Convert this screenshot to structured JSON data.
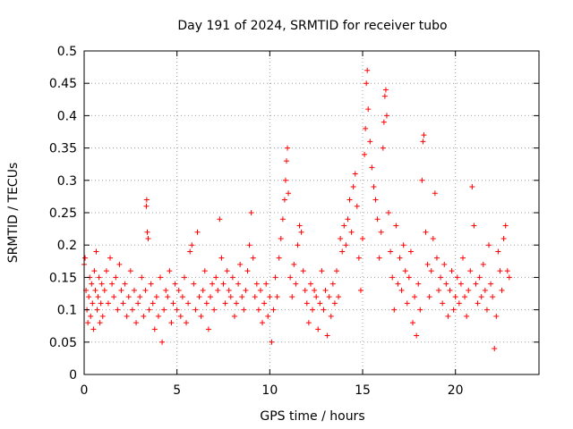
{
  "chart_data": {
    "type": "scatter",
    "title": "Day 191 of 2024, SRMTID for receiver tubo",
    "xlabel": "GPS time / hours",
    "ylabel": "SRMTID / TECUs",
    "xlim": [
      0,
      24.5
    ],
    "ylim": [
      0,
      0.5
    ],
    "xticks": [
      0,
      5,
      10,
      15,
      20
    ],
    "yticks": [
      0,
      0.05,
      0.1,
      0.15,
      0.2,
      0.25,
      0.3,
      0.35,
      0.4,
      0.45,
      0.5
    ],
    "xtick_labels": [
      "0",
      "5",
      "10",
      "15",
      "20"
    ],
    "ytick_labels": [
      "0",
      "0.05",
      "0.1",
      "0.15",
      "0.2",
      "0.25",
      "0.3",
      "0.35",
      "0.4",
      "0.45",
      "0.5"
    ],
    "grid": true,
    "marker": "+",
    "color": "#ff0000",
    "series": [
      {
        "name": "SRMTID",
        "points": [
          [
            0.0,
            0.17
          ],
          [
            0.05,
            0.18
          ],
          [
            0.1,
            0.13
          ],
          [
            0.15,
            0.1
          ],
          [
            0.2,
            0.08
          ],
          [
            0.25,
            0.12
          ],
          [
            0.3,
            0.15
          ],
          [
            0.35,
            0.09
          ],
          [
            0.4,
            0.14
          ],
          [
            0.45,
            0.11
          ],
          [
            0.5,
            0.07
          ],
          [
            0.55,
            0.16
          ],
          [
            0.6,
            0.13
          ],
          [
            0.65,
            0.19
          ],
          [
            0.7,
            0.1
          ],
          [
            0.75,
            0.12
          ],
          [
            0.8,
            0.15
          ],
          [
            0.85,
            0.08
          ],
          [
            0.9,
            0.11
          ],
          [
            0.95,
            0.14
          ],
          [
            1.0,
            0.09
          ],
          [
            1.1,
            0.13
          ],
          [
            1.2,
            0.16
          ],
          [
            1.3,
            0.11
          ],
          [
            1.4,
            0.18
          ],
          [
            1.5,
            0.14
          ],
          [
            1.6,
            0.12
          ],
          [
            1.7,
            0.15
          ],
          [
            1.8,
            0.1
          ],
          [
            1.9,
            0.17
          ],
          [
            2.0,
            0.13
          ],
          [
            2.1,
            0.11
          ],
          [
            2.2,
            0.14
          ],
          [
            2.3,
            0.09
          ],
          [
            2.4,
            0.12
          ],
          [
            2.5,
            0.16
          ],
          [
            2.6,
            0.1
          ],
          [
            2.7,
            0.13
          ],
          [
            2.8,
            0.08
          ],
          [
            2.9,
            0.11
          ],
          [
            3.0,
            0.12
          ],
          [
            3.1,
            0.15
          ],
          [
            3.2,
            0.09
          ],
          [
            3.3,
            0.13
          ],
          [
            3.35,
            0.26
          ],
          [
            3.37,
            0.27
          ],
          [
            3.4,
            0.22
          ],
          [
            3.45,
            0.21
          ],
          [
            3.5,
            0.1
          ],
          [
            3.6,
            0.14
          ],
          [
            3.7,
            0.11
          ],
          [
            3.8,
            0.07
          ],
          [
            3.9,
            0.12
          ],
          [
            4.0,
            0.09
          ],
          [
            4.1,
            0.15
          ],
          [
            4.2,
            0.05
          ],
          [
            4.3,
            0.1
          ],
          [
            4.4,
            0.13
          ],
          [
            4.5,
            0.12
          ],
          [
            4.6,
            0.16
          ],
          [
            4.7,
            0.08
          ],
          [
            4.8,
            0.11
          ],
          [
            4.9,
            0.14
          ],
          [
            5.0,
            0.1
          ],
          [
            5.1,
            0.13
          ],
          [
            5.2,
            0.09
          ],
          [
            5.3,
            0.12
          ],
          [
            5.4,
            0.15
          ],
          [
            5.5,
            0.08
          ],
          [
            5.6,
            0.11
          ],
          [
            5.7,
            0.19
          ],
          [
            5.8,
            0.2
          ],
          [
            5.9,
            0.14
          ],
          [
            6.0,
            0.1
          ],
          [
            6.1,
            0.22
          ],
          [
            6.2,
            0.12
          ],
          [
            6.3,
            0.09
          ],
          [
            6.4,
            0.13
          ],
          [
            6.5,
            0.16
          ],
          [
            6.6,
            0.11
          ],
          [
            6.7,
            0.07
          ],
          [
            6.8,
            0.12
          ],
          [
            6.9,
            0.14
          ],
          [
            7.0,
            0.1
          ],
          [
            7.1,
            0.15
          ],
          [
            7.2,
            0.13
          ],
          [
            7.3,
            0.24
          ],
          [
            7.4,
            0.18
          ],
          [
            7.5,
            0.14
          ],
          [
            7.6,
            0.11
          ],
          [
            7.7,
            0.16
          ],
          [
            7.8,
            0.13
          ],
          [
            7.9,
            0.12
          ],
          [
            8.0,
            0.15
          ],
          [
            8.1,
            0.09
          ],
          [
            8.2,
            0.11
          ],
          [
            8.3,
            0.14
          ],
          [
            8.4,
            0.17
          ],
          [
            8.5,
            0.12
          ],
          [
            8.6,
            0.1
          ],
          [
            8.7,
            0.13
          ],
          [
            8.8,
            0.16
          ],
          [
            8.9,
            0.2
          ],
          [
            9.0,
            0.25
          ],
          [
            9.1,
            0.18
          ],
          [
            9.2,
            0.12
          ],
          [
            9.3,
            0.14
          ],
          [
            9.4,
            0.1
          ],
          [
            9.5,
            0.13
          ],
          [
            9.6,
            0.08
          ],
          [
            9.7,
            0.11
          ],
          [
            9.8,
            0.14
          ],
          [
            9.9,
            0.09
          ],
          [
            10.0,
            0.12
          ],
          [
            10.1,
            0.05
          ],
          [
            10.2,
            0.1
          ],
          [
            10.3,
            0.15
          ],
          [
            10.4,
            0.12
          ],
          [
            10.5,
            0.18
          ],
          [
            10.6,
            0.21
          ],
          [
            10.7,
            0.24
          ],
          [
            10.8,
            0.27
          ],
          [
            10.85,
            0.3
          ],
          [
            10.9,
            0.33
          ],
          [
            10.95,
            0.35
          ],
          [
            11.0,
            0.28
          ],
          [
            11.1,
            0.15
          ],
          [
            11.2,
            0.12
          ],
          [
            11.3,
            0.17
          ],
          [
            11.4,
            0.14
          ],
          [
            11.5,
            0.2
          ],
          [
            11.6,
            0.23
          ],
          [
            11.7,
            0.22
          ],
          [
            11.8,
            0.16
          ],
          [
            11.9,
            0.13
          ],
          [
            12.0,
            0.11
          ],
          [
            12.1,
            0.08
          ],
          [
            12.2,
            0.14
          ],
          [
            12.3,
            0.1
          ],
          [
            12.4,
            0.13
          ],
          [
            12.5,
            0.12
          ],
          [
            12.6,
            0.07
          ],
          [
            12.7,
            0.11
          ],
          [
            12.8,
            0.16
          ],
          [
            12.9,
            0.1
          ],
          [
            13.0,
            0.13
          ],
          [
            13.1,
            0.06
          ],
          [
            13.2,
            0.12
          ],
          [
            13.3,
            0.09
          ],
          [
            13.4,
            0.14
          ],
          [
            13.5,
            0.11
          ],
          [
            13.6,
            0.16
          ],
          [
            13.7,
            0.12
          ],
          [
            13.8,
            0.21
          ],
          [
            13.9,
            0.19
          ],
          [
            14.0,
            0.23
          ],
          [
            14.1,
            0.2
          ],
          [
            14.2,
            0.24
          ],
          [
            14.3,
            0.27
          ],
          [
            14.4,
            0.22
          ],
          [
            14.5,
            0.29
          ],
          [
            14.6,
            0.31
          ],
          [
            14.7,
            0.26
          ],
          [
            14.8,
            0.18
          ],
          [
            14.9,
            0.13
          ],
          [
            15.0,
            0.21
          ],
          [
            15.1,
            0.34
          ],
          [
            15.15,
            0.38
          ],
          [
            15.2,
            0.45
          ],
          [
            15.25,
            0.47
          ],
          [
            15.3,
            0.41
          ],
          [
            15.4,
            0.36
          ],
          [
            15.5,
            0.32
          ],
          [
            15.6,
            0.29
          ],
          [
            15.7,
            0.27
          ],
          [
            15.8,
            0.24
          ],
          [
            15.9,
            0.18
          ],
          [
            16.0,
            0.22
          ],
          [
            16.1,
            0.35
          ],
          [
            16.15,
            0.39
          ],
          [
            16.2,
            0.43
          ],
          [
            16.25,
            0.44
          ],
          [
            16.3,
            0.4
          ],
          [
            16.4,
            0.25
          ],
          [
            16.5,
            0.19
          ],
          [
            16.6,
            0.15
          ],
          [
            16.7,
            0.1
          ],
          [
            16.8,
            0.23
          ],
          [
            16.9,
            0.14
          ],
          [
            17.0,
            0.18
          ],
          [
            17.1,
            0.13
          ],
          [
            17.2,
            0.2
          ],
          [
            17.3,
            0.16
          ],
          [
            17.4,
            0.11
          ],
          [
            17.5,
            0.15
          ],
          [
            17.6,
            0.19
          ],
          [
            17.7,
            0.08
          ],
          [
            17.8,
            0.12
          ],
          [
            17.9,
            0.06
          ],
          [
            18.0,
            0.14
          ],
          [
            18.1,
            0.1
          ],
          [
            18.2,
            0.3
          ],
          [
            18.25,
            0.36
          ],
          [
            18.3,
            0.37
          ],
          [
            18.4,
            0.22
          ],
          [
            18.5,
            0.17
          ],
          [
            18.6,
            0.12
          ],
          [
            18.7,
            0.16
          ],
          [
            18.8,
            0.21
          ],
          [
            18.9,
            0.28
          ],
          [
            19.0,
            0.18
          ],
          [
            19.1,
            0.13
          ],
          [
            19.2,
            0.15
          ],
          [
            19.3,
            0.11
          ],
          [
            19.4,
            0.17
          ],
          [
            19.5,
            0.14
          ],
          [
            19.6,
            0.09
          ],
          [
            19.7,
            0.13
          ],
          [
            19.8,
            0.16
          ],
          [
            19.9,
            0.1
          ],
          [
            20.0,
            0.12
          ],
          [
            20.1,
            0.15
          ],
          [
            20.2,
            0.11
          ],
          [
            20.3,
            0.14
          ],
          [
            20.4,
            0.18
          ],
          [
            20.5,
            0.12
          ],
          [
            20.6,
            0.09
          ],
          [
            20.7,
            0.13
          ],
          [
            20.8,
            0.16
          ],
          [
            20.9,
            0.29
          ],
          [
            21.0,
            0.23
          ],
          [
            21.1,
            0.14
          ],
          [
            21.2,
            0.11
          ],
          [
            21.3,
            0.15
          ],
          [
            21.4,
            0.12
          ],
          [
            21.5,
            0.17
          ],
          [
            21.6,
            0.13
          ],
          [
            21.7,
            0.1
          ],
          [
            21.8,
            0.2
          ],
          [
            21.9,
            0.14
          ],
          [
            22.0,
            0.12
          ],
          [
            22.1,
            0.04
          ],
          [
            22.2,
            0.09
          ],
          [
            22.3,
            0.19
          ],
          [
            22.4,
            0.16
          ],
          [
            22.5,
            0.13
          ],
          [
            22.6,
            0.21
          ],
          [
            22.7,
            0.23
          ],
          [
            22.8,
            0.16
          ],
          [
            22.9,
            0.15
          ]
        ]
      }
    ]
  }
}
